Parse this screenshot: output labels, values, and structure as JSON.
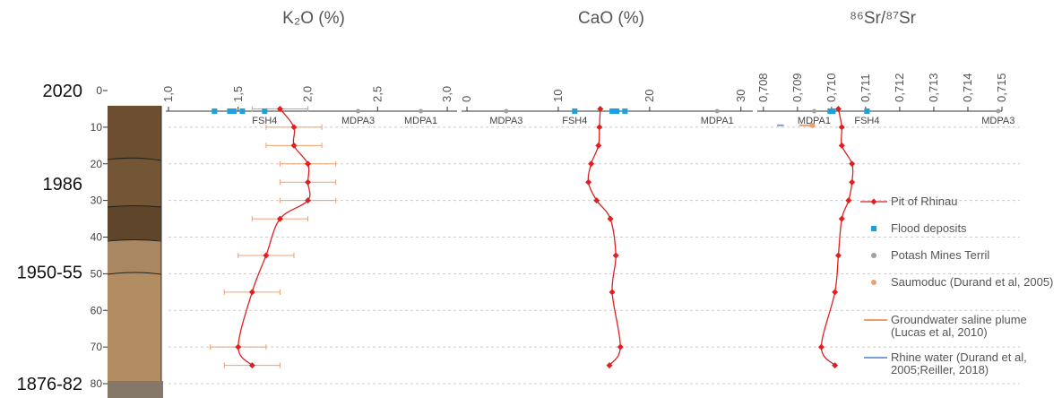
{
  "chart_data": [
    {
      "type": "profile",
      "title": "K₂O (%)",
      "xlim": [
        1.0,
        3.07
      ],
      "xticks": [
        {
          "value": 1.0,
          "label": "1,0"
        },
        {
          "value": 1.5,
          "label": "1,5"
        },
        {
          "value": 2.0,
          "label": "2,0"
        },
        {
          "value": 2.5,
          "label": "2,5"
        },
        {
          "value": 3.0,
          "label": "3,0"
        }
      ],
      "ylim": [
        0,
        80
      ],
      "yticks": [
        0,
        10,
        20,
        30,
        40,
        50,
        60,
        70,
        80
      ],
      "grid": true,
      "annotations": [
        {
          "text": "2020",
          "depth": 0
        },
        {
          "text": "1986",
          "depth": 25.5
        },
        {
          "text": "1950-55",
          "depth": 49.5
        },
        {
          "text": "1876-82",
          "depth": 80
        }
      ],
      "series": [
        {
          "name": "Pit of Rhinau",
          "color": "#e02020",
          "depths": [
            5,
            10,
            15,
            20,
            25,
            30,
            35,
            45,
            55,
            70,
            75
          ],
          "values": [
            1.8,
            1.9,
            1.9,
            2.0,
            2.0,
            2.0,
            1.8,
            1.7,
            1.6,
            1.5,
            1.6
          ],
          "errors": [
            0.2,
            0.2,
            0.2,
            0.2,
            0.2,
            0.2,
            0.2,
            0.2,
            0.2,
            0.2,
            0.2
          ],
          "error_color": "#f0a070"
        },
        {
          "name": "Flood deposits",
          "color": "#1ba1e2",
          "values": [
            1.33,
            1.44,
            1.47,
            1.53,
            1.69
          ],
          "point_labels": [
            null,
            null,
            null,
            null,
            "FSH4"
          ]
        },
        {
          "name": "Potash Mines Terril",
          "color": "#a0a0a0",
          "values": [
            2.36,
            2.81
          ],
          "point_labels": [
            "MDPA3",
            "MDPA1"
          ]
        }
      ]
    },
    {
      "type": "profile",
      "title": "CaO (%)",
      "xlim": [
        -0.3,
        31.3
      ],
      "xticks": [
        0,
        10,
        20,
        30
      ],
      "ylim": [
        0,
        80
      ],
      "series": [
        {
          "name": "Pit of Rhinau",
          "color": "#e02020",
          "depths": [
            5,
            10,
            15,
            20,
            25,
            30,
            35,
            45,
            55,
            70,
            75
          ],
          "values": [
            14.6,
            14.5,
            14.4,
            13.6,
            13.3,
            14.2,
            15.7,
            16.3,
            15.9,
            16.8,
            15.6
          ]
        },
        {
          "name": "Flood deposits",
          "color": "#1ba1e2",
          "values": [
            11.8,
            15.9,
            16.4,
            17.3
          ],
          "point_labels": [
            "FSH4",
            null,
            null,
            null
          ]
        },
        {
          "name": "Potash Mines Terril",
          "color": "#a0a0a0",
          "values": [
            4.3,
            27.4
          ],
          "point_labels": [
            "MDPA3",
            "MDPA1"
          ]
        }
      ]
    },
    {
      "type": "profile",
      "title": "⁸⁶Sr/⁸⁷Sr",
      "xlim": [
        0.7079,
        0.715
      ],
      "xticks": [
        {
          "value": 0.708,
          "label": "0,708"
        },
        {
          "value": 0.709,
          "label": "0,709"
        },
        {
          "value": 0.71,
          "label": "0,710"
        },
        {
          "value": 0.711,
          "label": "0,711"
        },
        {
          "value": 0.712,
          "label": "0,712"
        },
        {
          "value": 0.713,
          "label": "0,713"
        },
        {
          "value": 0.714,
          "label": "0,714"
        },
        {
          "value": 0.715,
          "label": "0,715"
        }
      ],
      "ylim": [
        0,
        80
      ],
      "series": [
        {
          "name": "Pit of Rhinau",
          "color": "#e02020",
          "depths": [
            5,
            10,
            15,
            20,
            25,
            30,
            35,
            45,
            55,
            70,
            75
          ],
          "values": [
            0.7102,
            0.7103,
            0.7103,
            0.7106,
            0.7106,
            0.7105,
            0.7103,
            0.7102,
            0.7101,
            0.7097,
            0.7101
          ]
        },
        {
          "name": "Flood deposits",
          "color": "#1ba1e2",
          "values": [
            0.70996,
            0.71004,
            0.71104
          ],
          "point_labels": [
            null,
            null,
            "FSH4"
          ]
        },
        {
          "name": "Potash Mines Terril",
          "color": "#a0a0a0",
          "values": [
            0.70949,
            0.71489
          ],
          "point_labels": [
            "MDPA1",
            "MDPA3"
          ]
        },
        {
          "name": "Saumoduc (Durand et al, 2005)",
          "color": "#f0a070",
          "depths": [
            9.5
          ],
          "values": [
            0.70944
          ]
        },
        {
          "name": "Groundwater saline plume (Lucas et al, 2010)",
          "color": "#e8a070",
          "depths": [
            9.5
          ],
          "ranges": [
            [
              0.70905,
              0.70944
            ]
          ]
        },
        {
          "name": "Rhine  water (Durand et al, 2005;Reiller, 2018)",
          "color": "#7aa0d8",
          "depths": [
            9.5
          ],
          "ranges": [
            [
              0.7084,
              0.7086
            ]
          ]
        }
      ]
    }
  ]
}
